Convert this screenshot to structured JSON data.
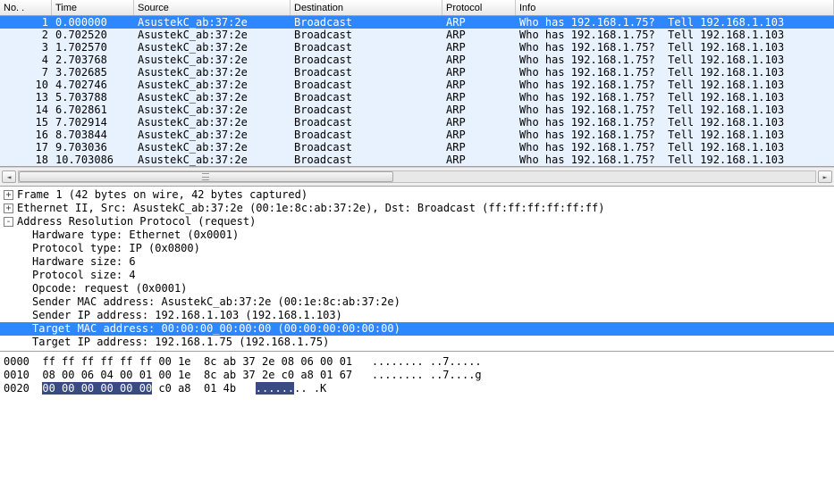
{
  "columns": {
    "no": "No. .",
    "time": "Time",
    "source": "Source",
    "destination": "Destination",
    "protocol": "Protocol",
    "info": "Info"
  },
  "packets": [
    {
      "no": "1",
      "time": "0.000000",
      "src": "AsustekC_ab:37:2e",
      "dst": "Broadcast",
      "proto": "ARP",
      "info": "Who has 192.168.1.75?  Tell 192.168.1.103",
      "selected": true
    },
    {
      "no": "2",
      "time": "0.702520",
      "src": "AsustekC_ab:37:2e",
      "dst": "Broadcast",
      "proto": "ARP",
      "info": "Who has 192.168.1.75?  Tell 192.168.1.103"
    },
    {
      "no": "3",
      "time": "1.702570",
      "src": "AsustekC_ab:37:2e",
      "dst": "Broadcast",
      "proto": "ARP",
      "info": "Who has 192.168.1.75?  Tell 192.168.1.103"
    },
    {
      "no": "4",
      "time": "2.703768",
      "src": "AsustekC_ab:37:2e",
      "dst": "Broadcast",
      "proto": "ARP",
      "info": "Who has 192.168.1.75?  Tell 192.168.1.103"
    },
    {
      "no": "7",
      "time": "3.702685",
      "src": "AsustekC_ab:37:2e",
      "dst": "Broadcast",
      "proto": "ARP",
      "info": "Who has 192.168.1.75?  Tell 192.168.1.103"
    },
    {
      "no": "10",
      "time": "4.702746",
      "src": "AsustekC_ab:37:2e",
      "dst": "Broadcast",
      "proto": "ARP",
      "info": "Who has 192.168.1.75?  Tell 192.168.1.103"
    },
    {
      "no": "13",
      "time": "5.703788",
      "src": "AsustekC_ab:37:2e",
      "dst": "Broadcast",
      "proto": "ARP",
      "info": "Who has 192.168.1.75?  Tell 192.168.1.103"
    },
    {
      "no": "14",
      "time": "6.702861",
      "src": "AsustekC_ab:37:2e",
      "dst": "Broadcast",
      "proto": "ARP",
      "info": "Who has 192.168.1.75?  Tell 192.168.1.103"
    },
    {
      "no": "15",
      "time": "7.702914",
      "src": "AsustekC_ab:37:2e",
      "dst": "Broadcast",
      "proto": "ARP",
      "info": "Who has 192.168.1.75?  Tell 192.168.1.103"
    },
    {
      "no": "16",
      "time": "8.703844",
      "src": "AsustekC_ab:37:2e",
      "dst": "Broadcast",
      "proto": "ARP",
      "info": "Who has 192.168.1.75?  Tell 192.168.1.103"
    },
    {
      "no": "17",
      "time": "9.703036",
      "src": "AsustekC_ab:37:2e",
      "dst": "Broadcast",
      "proto": "ARP",
      "info": "Who has 192.168.1.75?  Tell 192.168.1.103"
    },
    {
      "no": "18",
      "time": "10.703086",
      "src": "AsustekC_ab:37:2e",
      "dst": "Broadcast",
      "proto": "ARP",
      "info": "Who has 192.168.1.75?  Tell 192.168.1.103"
    }
  ],
  "details": {
    "lines": [
      {
        "toggle": "+",
        "text": "Frame 1 (42 bytes on wire, 42 bytes captured)",
        "indent": 0
      },
      {
        "toggle": "+",
        "text": "Ethernet II, Src: AsustekC_ab:37:2e (00:1e:8c:ab:37:2e), Dst: Broadcast (ff:ff:ff:ff:ff:ff)",
        "indent": 0
      },
      {
        "toggle": "-",
        "text": "Address Resolution Protocol (request)",
        "indent": 0
      },
      {
        "toggle": "",
        "text": "Hardware type: Ethernet (0x0001)",
        "indent": 1
      },
      {
        "toggle": "",
        "text": "Protocol type: IP (0x0800)",
        "indent": 1
      },
      {
        "toggle": "",
        "text": "Hardware size: 6",
        "indent": 1
      },
      {
        "toggle": "",
        "text": "Protocol size: 4",
        "indent": 1
      },
      {
        "toggle": "",
        "text": "Opcode: request (0x0001)",
        "indent": 1
      },
      {
        "toggle": "",
        "text": "Sender MAC address: AsustekC_ab:37:2e (00:1e:8c:ab:37:2e)",
        "indent": 1
      },
      {
        "toggle": "",
        "text": "Sender IP address: 192.168.1.103 (192.168.1.103)",
        "indent": 1
      },
      {
        "toggle": "",
        "text": "Target MAC address: 00:00:00_00:00:00 (00:00:00:00:00:00)",
        "indent": 1,
        "selected": true
      },
      {
        "toggle": "",
        "text": "Target IP address: 192.168.1.75 (192.168.1.75)",
        "indent": 1
      }
    ]
  },
  "bytes": {
    "lines": [
      {
        "offset": "0000",
        "hex_pre": "",
        "hex_sel": "",
        "hex_post": "ff ff ff ff ff ff 00 1e  8c ab 37 2e 08 06 00 01",
        "ascii_pre": "........ ..7.....",
        "ascii_sel": "",
        "ascii_post": ""
      },
      {
        "offset": "0010",
        "hex_pre": "",
        "hex_sel": "",
        "hex_post": "08 00 06 04 00 01 00 1e  8c ab 37 2e c0 a8 01 67",
        "ascii_pre": "........ ..7....g",
        "ascii_sel": "",
        "ascii_post": ""
      },
      {
        "offset": "0020",
        "hex_pre": "",
        "hex_sel": "00 00 00 00 00 00",
        "hex_post": " c0 a8  01 4b",
        "ascii_pre": "",
        "ascii_sel": "......",
        "ascii_post": ".. .K"
      }
    ]
  }
}
